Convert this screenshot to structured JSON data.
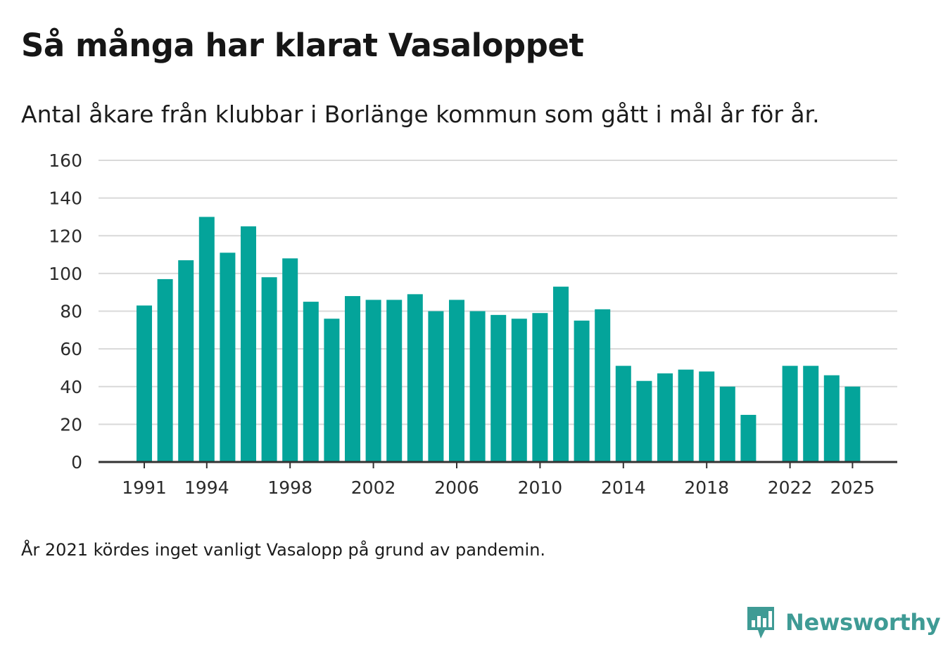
{
  "title": "Så många har klarat Vasaloppet",
  "subtitle": "Antal åkare från klubbar i Borlänge kommun som gått i mål år för år.",
  "note": "År 2021 kördes inget vanligt Vasalopp på grund av pandemin.",
  "brand": {
    "name": "Newsworthy",
    "icon": "newsworthy-logo-icon"
  },
  "colors": {
    "bar": "#04a49a",
    "grid": "#d9d9d9",
    "axis": "#333333",
    "text": "#2b2b2b",
    "brand": "#3f9b95"
  },
  "chart_data": {
    "type": "bar",
    "title": "Så många har klarat Vasaloppet",
    "xlabel": "",
    "ylabel": "",
    "ylim": [
      0,
      160
    ],
    "yticks": [
      0,
      20,
      40,
      60,
      80,
      100,
      120,
      140,
      160
    ],
    "xticks": [
      1991,
      1994,
      1998,
      2002,
      2006,
      2010,
      2014,
      2018,
      2022,
      2025
    ],
    "grid": true,
    "categories": [
      1991,
      1992,
      1993,
      1994,
      1995,
      1996,
      1997,
      1998,
      1999,
      2000,
      2001,
      2002,
      2003,
      2004,
      2005,
      2006,
      2007,
      2008,
      2009,
      2010,
      2011,
      2012,
      2013,
      2014,
      2015,
      2016,
      2017,
      2018,
      2019,
      2020,
      2021,
      2022,
      2023,
      2024,
      2025
    ],
    "values": [
      83,
      97,
      107,
      130,
      111,
      125,
      98,
      108,
      85,
      76,
      88,
      86,
      86,
      89,
      80,
      86,
      80,
      78,
      76,
      79,
      93,
      75,
      81,
      51,
      43,
      47,
      49,
      48,
      40,
      25,
      null,
      51,
      51,
      46,
      40
    ]
  }
}
